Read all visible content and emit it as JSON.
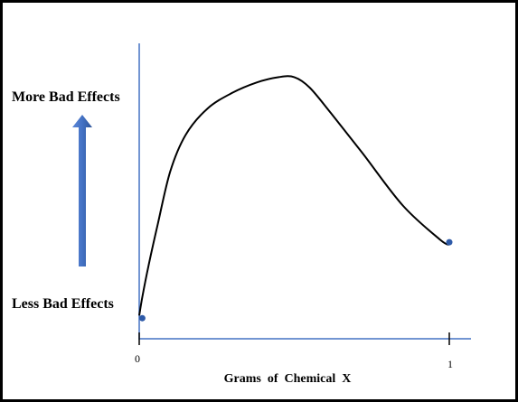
{
  "chart_data": {
    "type": "line",
    "title": "",
    "xlabel": "Grams  of  Chemical  X",
    "ylabel_high": "More Bad Effects",
    "ylabel_low": "Less Bad Effects",
    "x_ticks": [
      "0",
      "1"
    ],
    "xlim": [
      0,
      1
    ],
    "ylim": [
      0,
      1
    ],
    "grid": false,
    "legend": "none",
    "series": [
      {
        "x": [
          0.0,
          0.01,
          0.03,
          0.06,
          0.1,
          0.15,
          0.22,
          0.3,
          0.38,
          0.45,
          0.5,
          0.55,
          0.62,
          0.72,
          0.85,
          0.97,
          1.0
        ],
        "values": [
          0.03,
          0.1,
          0.22,
          0.38,
          0.58,
          0.72,
          0.82,
          0.88,
          0.92,
          0.94,
          0.94,
          0.9,
          0.8,
          0.65,
          0.45,
          0.32,
          0.3
        ]
      }
    ],
    "points": [
      {
        "x": 0.01,
        "y": 0.02
      },
      {
        "x": 1.0,
        "y": 0.31
      }
    ],
    "colors": {
      "axes": "#4472c4",
      "curve": "#000000",
      "arrow": "#4472c4",
      "points": "#2e5aa8"
    }
  }
}
